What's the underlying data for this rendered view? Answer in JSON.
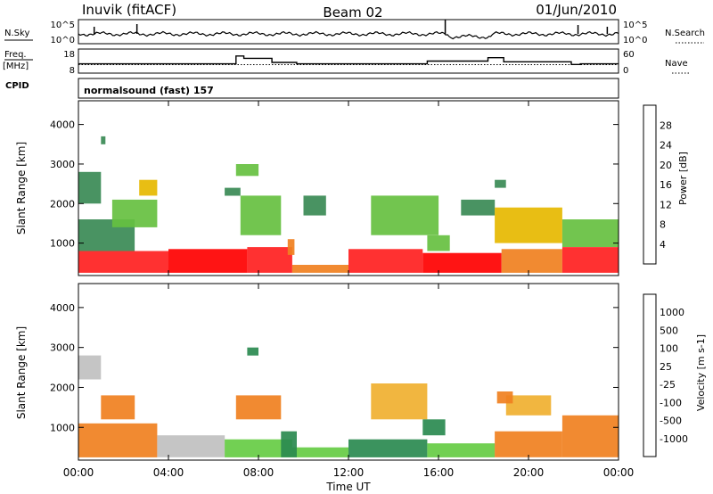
{
  "header": {
    "station": "Inuvik (fitACF)",
    "beam": "Beam 02",
    "date": "01/Jun/2010"
  },
  "noise_panel": {
    "left_label": "N.Sky",
    "right_label": "N.Search",
    "left_ticks": [
      "10^5",
      "10^0"
    ],
    "right_ticks": [
      "10^5",
      "10^0"
    ]
  },
  "freq_panel": {
    "left_label_1": "Freq.",
    "left_label_2": "[MHz]",
    "right_label": "Nave",
    "left_ticks": [
      "18",
      "8"
    ],
    "right_ticks": [
      "60",
      "0"
    ],
    "freq_ylim": [
      8,
      18
    ],
    "nave_ylim": [
      0,
      60
    ],
    "nave_steps": [
      {
        "from": 0.0,
        "to": 7.0,
        "value": 22
      },
      {
        "from": 7.0,
        "to": 7.35,
        "value": 45
      },
      {
        "from": 7.35,
        "to": 8.6,
        "value": 38
      },
      {
        "from": 8.6,
        "to": 9.7,
        "value": 26
      },
      {
        "from": 9.7,
        "to": 15.5,
        "value": 22
      },
      {
        "from": 15.5,
        "to": 18.2,
        "value": 30
      },
      {
        "from": 18.2,
        "to": 18.9,
        "value": 40
      },
      {
        "from": 18.9,
        "to": 21.9,
        "value": 28
      },
      {
        "from": 21.9,
        "to": 22.3,
        "value": 20
      },
      {
        "from": 22.3,
        "to": 24.0,
        "value": 22
      }
    ],
    "freq_dotted": 11.5
  },
  "cpid": {
    "label": "CPID",
    "program": "normalsound (fast) 157"
  },
  "axes": {
    "ylabel": "Slant Range [km]",
    "xlabel": "Time UT",
    "yticks": [
      "1000",
      "2000",
      "3000",
      "4000"
    ],
    "xticks": [
      "00:00",
      "04:00",
      "08:00",
      "12:00",
      "16:00",
      "20:00",
      "00:00"
    ]
  },
  "chart_data": [
    {
      "type": "heatmap",
      "name": "power",
      "xlim": [
        0,
        24
      ],
      "ylim": [
        180,
        4600
      ],
      "xlabel": "Time UT",
      "ylabel": "Slant Range [km]",
      "colorbar": {
        "label": "Power [dB]",
        "ticks": [
          "4",
          "8",
          "12",
          "16",
          "20",
          "24",
          "28"
        ],
        "colors": [
          "#1010ee",
          "#2255bb",
          "#3a8a55",
          "#66c040",
          "#e6b800",
          "#f08020",
          "#ff2020",
          "#ff0000"
        ]
      },
      "cells": [
        {
          "t0": 0.0,
          "t1": 4.0,
          "r0": 250,
          "r1": 800,
          "v": 24
        },
        {
          "t0": 4.0,
          "t1": 7.5,
          "r0": 250,
          "r1": 850,
          "v": 28
        },
        {
          "t0": 7.5,
          "t1": 9.5,
          "r0": 250,
          "r1": 900,
          "v": 24
        },
        {
          "t0": 9.5,
          "t1": 12.0,
          "r0": 250,
          "r1": 450,
          "v": 20
        },
        {
          "t0": 12.0,
          "t1": 15.3,
          "r0": 250,
          "r1": 850,
          "v": 26
        },
        {
          "t0": 15.3,
          "t1": 18.8,
          "r0": 250,
          "r1": 750,
          "v": 28
        },
        {
          "t0": 18.8,
          "t1": 21.5,
          "r0": 250,
          "r1": 850,
          "v": 22
        },
        {
          "t0": 21.5,
          "t1": 24.0,
          "r0": 250,
          "r1": 900,
          "v": 26
        },
        {
          "t0": 0.0,
          "t1": 2.5,
          "r0": 800,
          "r1": 1600,
          "v": 10
        },
        {
          "t0": 0.0,
          "t1": 1.0,
          "r0": 2000,
          "r1": 2800,
          "v": 8
        },
        {
          "t0": 1.5,
          "t1": 3.5,
          "r0": 1400,
          "r1": 2100,
          "v": 14
        },
        {
          "t0": 2.7,
          "t1": 3.5,
          "r0": 2200,
          "r1": 2600,
          "v": 16
        },
        {
          "t0": 6.5,
          "t1": 7.2,
          "r0": 2200,
          "r1": 2400,
          "v": 8
        },
        {
          "t0": 7.2,
          "t1": 9.0,
          "r0": 1200,
          "r1": 2200,
          "v": 12
        },
        {
          "t0": 9.3,
          "t1": 9.6,
          "r0": 700,
          "r1": 1100,
          "v": 20
        },
        {
          "t0": 10.0,
          "t1": 11.0,
          "r0": 1700,
          "r1": 2200,
          "v": 8
        },
        {
          "t0": 13.0,
          "t1": 16.0,
          "r0": 1200,
          "r1": 2200,
          "v": 14
        },
        {
          "t0": 15.5,
          "t1": 16.5,
          "r0": 800,
          "r1": 1200,
          "v": 12
        },
        {
          "t0": 17.0,
          "t1": 18.5,
          "r0": 1700,
          "r1": 2100,
          "v": 10
        },
        {
          "t0": 18.5,
          "t1": 21.5,
          "r0": 1000,
          "r1": 1900,
          "v": 16
        },
        {
          "t0": 21.5,
          "t1": 24.0,
          "r0": 900,
          "r1": 1600,
          "v": 12
        },
        {
          "t0": 7.0,
          "t1": 8.0,
          "r0": 2700,
          "r1": 3000,
          "v": 12
        },
        {
          "t0": 18.5,
          "t1": 19.0,
          "r0": 2400,
          "r1": 2600,
          "v": 8
        },
        {
          "t0": 1.0,
          "t1": 1.2,
          "r0": 3500,
          "r1": 3700,
          "v": 8
        }
      ]
    },
    {
      "type": "heatmap",
      "name": "velocity",
      "xlim": [
        0,
        24
      ],
      "ylim": [
        180,
        4600
      ],
      "xlabel": "Time UT",
      "ylabel": "Slant Range [km]",
      "colorbar": {
        "label": "Velocity [m s-1]",
        "ticks": [
          "1000",
          "500",
          "100",
          "25",
          "-25",
          "-100",
          "-500",
          "-1000"
        ],
        "colors": [
          "#1030a0",
          "#2070b0",
          "#2a8a50",
          "#66cc44",
          "#c0c0c0",
          "#f0b030",
          "#f08020",
          "#ff5010",
          "#ff0000"
        ]
      },
      "cells": [
        {
          "t0": 0.0,
          "t1": 3.5,
          "r0": 250,
          "r1": 1100,
          "v": -200
        },
        {
          "t0": 0.0,
          "t1": 1.0,
          "r0": 2200,
          "r1": 2800,
          "v": 0
        },
        {
          "t0": 1.0,
          "t1": 2.5,
          "r0": 1200,
          "r1": 1800,
          "v": -150
        },
        {
          "t0": 3.5,
          "t1": 6.5,
          "r0": 250,
          "r1": 800,
          "v": 10
        },
        {
          "t0": 6.5,
          "t1": 9.5,
          "r0": 250,
          "r1": 700,
          "v": 40
        },
        {
          "t0": 7.0,
          "t1": 9.0,
          "r0": 1200,
          "r1": 1800,
          "v": -150
        },
        {
          "t0": 9.5,
          "t1": 12.0,
          "r0": 250,
          "r1": 500,
          "v": 60
        },
        {
          "t0": 12.0,
          "t1": 15.5,
          "r0": 250,
          "r1": 700,
          "v": 150
        },
        {
          "t0": 13.0,
          "t1": 15.5,
          "r0": 1200,
          "r1": 2100,
          "v": -60
        },
        {
          "t0": 15.5,
          "t1": 18.5,
          "r0": 250,
          "r1": 600,
          "v": 60
        },
        {
          "t0": 15.3,
          "t1": 16.3,
          "r0": 800,
          "r1": 1200,
          "v": 200
        },
        {
          "t0": 18.5,
          "t1": 21.5,
          "r0": 250,
          "r1": 900,
          "v": -200
        },
        {
          "t0": 19.0,
          "t1": 21.0,
          "r0": 1300,
          "r1": 1800,
          "v": -100
        },
        {
          "t0": 21.5,
          "t1": 24.0,
          "r0": 250,
          "r1": 1300,
          "v": -250
        },
        {
          "t0": 9.0,
          "t1": 9.7,
          "r0": 250,
          "r1": 900,
          "v": 300
        },
        {
          "t0": 7.5,
          "t1": 8.0,
          "r0": 2800,
          "r1": 3000,
          "v": 200
        },
        {
          "t0": 18.6,
          "t1": 19.3,
          "r0": 1600,
          "r1": 1900,
          "v": -200
        }
      ]
    }
  ]
}
